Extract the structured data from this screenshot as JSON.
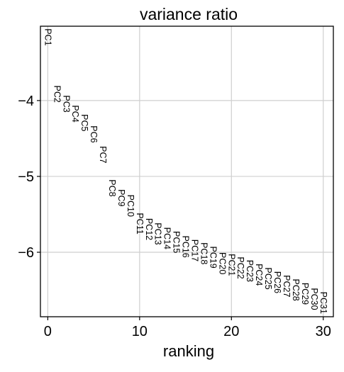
{
  "chart_data": {
    "type": "scatter",
    "title": "variance ratio",
    "xlabel": "ranking",
    "ylabel": "",
    "xlim": [
      -0.8,
      31.1
    ],
    "ylim": [
      -6.85,
      -3.02
    ],
    "log_scale_y": true,
    "grid": true,
    "xticks": [
      0,
      10,
      20,
      30
    ],
    "xtick_labels": [
      "0",
      "10",
      "20",
      "30"
    ],
    "yticks": [
      -4,
      -5,
      -6
    ],
    "ytick_labels": [
      "−4",
      "−5",
      "−6"
    ],
    "points": [
      {
        "label": "PC1",
        "x": 0,
        "y": -3.05
      },
      {
        "label": "PC2",
        "x": 1,
        "y": -3.8
      },
      {
        "label": "PC3",
        "x": 2,
        "y": -3.93
      },
      {
        "label": "PC4",
        "x": 3,
        "y": -4.06
      },
      {
        "label": "PC5",
        "x": 4,
        "y": -4.18
      },
      {
        "label": "PC6",
        "x": 5,
        "y": -4.33
      },
      {
        "label": "PC7",
        "x": 6,
        "y": -4.6
      },
      {
        "label": "PC8",
        "x": 7,
        "y": -5.04
      },
      {
        "label": "PC9",
        "x": 8,
        "y": -5.17
      },
      {
        "label": "PC10",
        "x": 9,
        "y": -5.24
      },
      {
        "label": "PC11",
        "x": 10,
        "y": -5.48
      },
      {
        "label": "PC12",
        "x": 11,
        "y": -5.55
      },
      {
        "label": "PC13",
        "x": 12,
        "y": -5.61
      },
      {
        "label": "PC14",
        "x": 13,
        "y": -5.67
      },
      {
        "label": "PC15",
        "x": 14,
        "y": -5.72
      },
      {
        "label": "PC16",
        "x": 15,
        "y": -5.78
      },
      {
        "label": "PC17",
        "x": 16,
        "y": -5.83
      },
      {
        "label": "PC18",
        "x": 17,
        "y": -5.87
      },
      {
        "label": "PC19",
        "x": 18,
        "y": -5.92
      },
      {
        "label": "PC20",
        "x": 19,
        "y": -6.0
      },
      {
        "label": "PC21",
        "x": 20,
        "y": -6.02
      },
      {
        "label": "PC22",
        "x": 21,
        "y": -6.06
      },
      {
        "label": "PC23",
        "x": 22,
        "y": -6.1
      },
      {
        "label": "PC24",
        "x": 23,
        "y": -6.15
      },
      {
        "label": "PC25",
        "x": 24,
        "y": -6.2
      },
      {
        "label": "PC26",
        "x": 25,
        "y": -6.25
      },
      {
        "label": "PC27",
        "x": 26,
        "y": -6.3
      },
      {
        "label": "PC28",
        "x": 27,
        "y": -6.35
      },
      {
        "label": "PC29",
        "x": 28,
        "y": -6.4
      },
      {
        "label": "PC30",
        "x": 29,
        "y": -6.47
      },
      {
        "label": "PC31",
        "x": 30,
        "y": -6.52
      }
    ]
  },
  "colors": {
    "frame": "#000000",
    "grid": "#cfcfcf",
    "text": "#000000",
    "background": "#ffffff"
  }
}
